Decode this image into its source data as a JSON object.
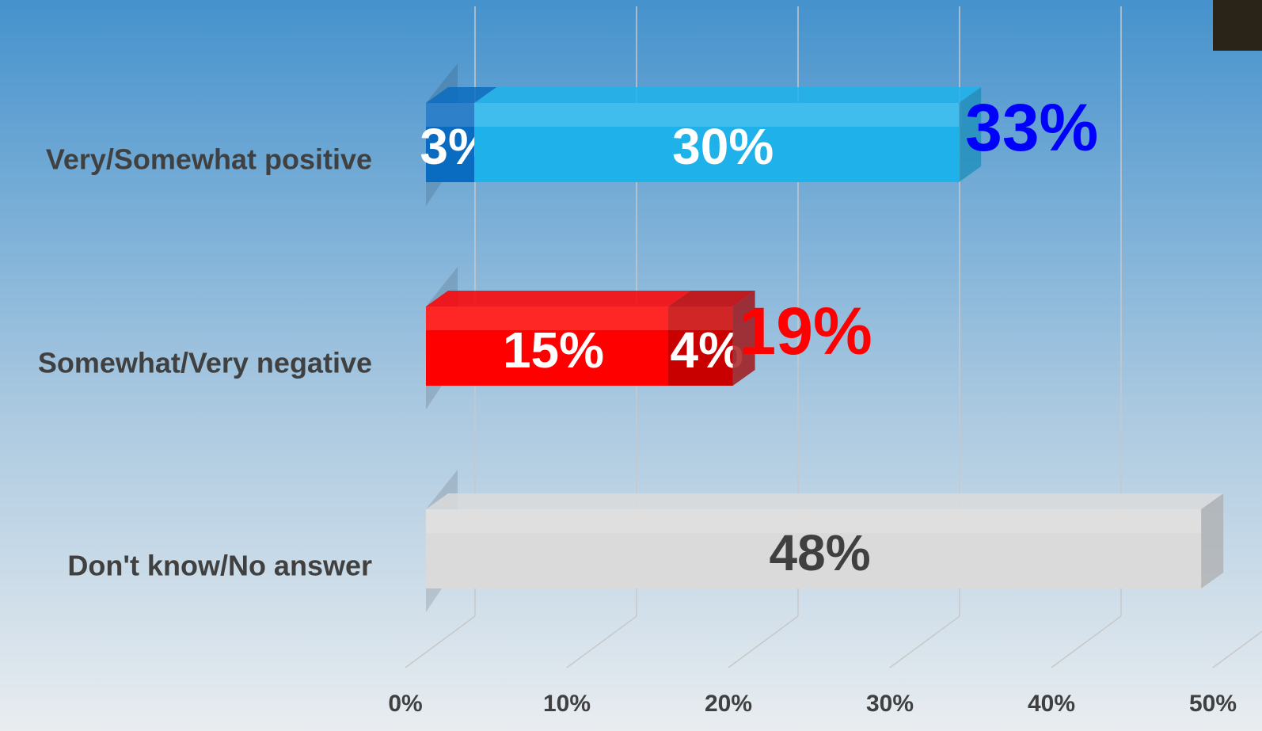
{
  "chart_data": {
    "type": "stacked-bar-horizontal",
    "categories": [
      "Very/Somewhat positive",
      "Somewhat/Very negative",
      "Don't know/No answer"
    ],
    "series": [
      {
        "values": [
          3,
          15,
          48
        ],
        "value_labels": [
          "3%",
          "15%",
          "48%"
        ],
        "colors": [
          "#0a6cc0",
          "#ff0000",
          "#dadada"
        ],
        "label_colors": [
          "#ffffff",
          "#ffffff",
          "#404040"
        ]
      },
      {
        "values": [
          30,
          4,
          null
        ],
        "value_labels": [
          "30%",
          "4%",
          null
        ],
        "colors": [
          "#1fb1ea",
          "#c80000",
          null
        ],
        "label_colors": [
          "#ffffff",
          "#ffffff",
          null
        ]
      }
    ],
    "totals": [
      33,
      19,
      null
    ],
    "total_labels": [
      "33%",
      "19%",
      null
    ],
    "total_colors": [
      "#0000ff",
      "#ff0000",
      null
    ],
    "xlim": [
      0,
      50
    ],
    "xticks": [
      {
        "value": 0,
        "label": "0%"
      },
      {
        "value": 10,
        "label": "10%"
      },
      {
        "value": 20,
        "label": "20%"
      },
      {
        "value": 30,
        "label": "30%"
      },
      {
        "value": 40,
        "label": "40%"
      },
      {
        "value": 50,
        "label": "50%"
      }
    ],
    "grid": true
  }
}
